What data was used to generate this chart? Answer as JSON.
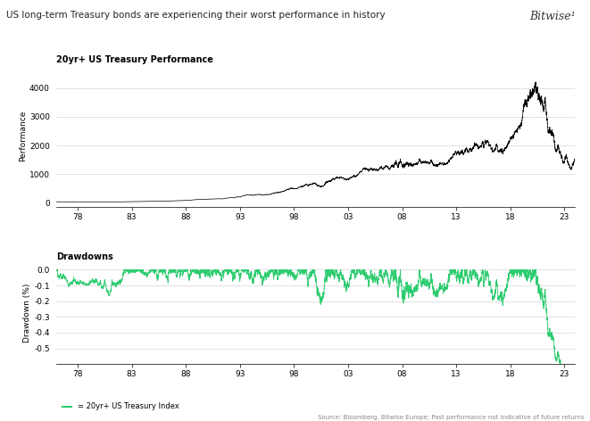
{
  "title_main": "US long-term Treasury bonds are experiencing their worst performance in history",
  "title_sub": "20yr+ US Treasury Performance",
  "logo": "Bitwise¹",
  "source": "Source: Bloomberg, Bitwise Europe; Past performance not indicative of future returns",
  "legend_label": "= 20yr+ US Treasury Index",
  "ylabel_top": "Performance",
  "ylabel_bottom": "Drawdown (%)",
  "xticks": [
    1978,
    1983,
    1988,
    1993,
    1998,
    2003,
    2008,
    2013,
    2018,
    2023
  ],
  "xtick_labels": [
    "78",
    "83",
    "88",
    "93",
    "98",
    "03",
    "08",
    "13",
    "18",
    "23"
  ],
  "yticks_top": [
    0,
    1000,
    2000,
    3000,
    4000
  ],
  "yticks_bottom": [
    0.0,
    -0.1,
    -0.2,
    -0.3,
    -0.4,
    -0.5
  ],
  "line_color": "#000000",
  "drawdown_color": "#2ecc71",
  "background_color": "#ffffff",
  "start_year": 1976,
  "end_year": 2024,
  "seed": 12345
}
